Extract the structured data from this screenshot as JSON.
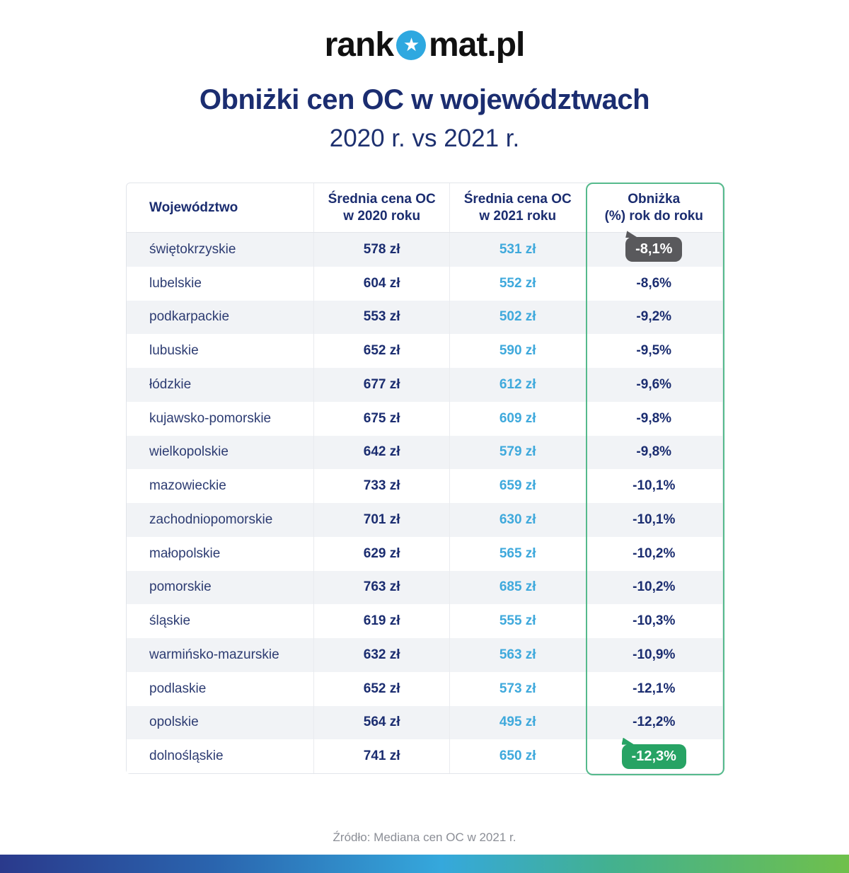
{
  "logo": {
    "text_before": "rank",
    "text_after": "mat.pl",
    "star_glyph": "★",
    "circle_color": "#2ea8e0"
  },
  "header": {
    "title": "Obniżki cen OC w województwach",
    "subtitle": "2020 r. vs 2021 r."
  },
  "table": {
    "columns": [
      "Województwo",
      "Średnia cena OC\nw 2020 roku",
      "Średnia cena OC\nw 2021 roku",
      "Obniżka\n(%) rok do roku"
    ],
    "rows": [
      {
        "region": "świętokrzyskie",
        "price_2020": "578 zł",
        "price_2021": "531 zł",
        "change": "-8,1%",
        "badge": "gray"
      },
      {
        "region": "lubelskie",
        "price_2020": "604 zł",
        "price_2021": "552 zł",
        "change": "-8,6%",
        "badge": null
      },
      {
        "region": "podkarpackie",
        "price_2020": "553 zł",
        "price_2021": "502 zł",
        "change": "-9,2%",
        "badge": null
      },
      {
        "region": "lubuskie",
        "price_2020": "652 zł",
        "price_2021": "590 zł",
        "change": "-9,5%",
        "badge": null
      },
      {
        "region": "łódzkie",
        "price_2020": "677 zł",
        "price_2021": "612 zł",
        "change": "-9,6%",
        "badge": null
      },
      {
        "region": "kujawsko-pomorskie",
        "price_2020": "675 zł",
        "price_2021": "609 zł",
        "change": "-9,8%",
        "badge": null
      },
      {
        "region": "wielkopolskie",
        "price_2020": "642 zł",
        "price_2021": "579 zł",
        "change": "-9,8%",
        "badge": null
      },
      {
        "region": "mazowieckie",
        "price_2020": "733 zł",
        "price_2021": "659 zł",
        "change": "-10,1%",
        "badge": null
      },
      {
        "region": "zachodniopomorskie",
        "price_2020": "701 zł",
        "price_2021": "630 zł",
        "change": "-10,1%",
        "badge": null
      },
      {
        "region": "małopolskie",
        "price_2020": "629 zł",
        "price_2021": "565 zł",
        "change": "-10,2%",
        "badge": null
      },
      {
        "region": "pomorskie",
        "price_2020": "763 zł",
        "price_2021": "685 zł",
        "change": "-10,2%",
        "badge": null
      },
      {
        "region": "śląskie",
        "price_2020": "619 zł",
        "price_2021": "555 zł",
        "change": "-10,3%",
        "badge": null
      },
      {
        "region": "warmińsko-mazurskie",
        "price_2020": "632 zł",
        "price_2021": "563 zł",
        "change": "-10,9%",
        "badge": null
      },
      {
        "region": "podlaskie",
        "price_2020": "652 zł",
        "price_2021": "573 zł",
        "change": "-12,1%",
        "badge": null
      },
      {
        "region": "opolskie",
        "price_2020": "564 zł",
        "price_2021": "495 zł",
        "change": "-12,2%",
        "badge": null
      },
      {
        "region": "dolnośląskie",
        "price_2020": "741 zł",
        "price_2021": "650 zł",
        "change": "-12,3%",
        "badge": "green"
      }
    ]
  },
  "footer": {
    "source": "Źródło: Mediana cen OC w 2021 r."
  },
  "colors": {
    "navy_text": "#1b2d70",
    "light_blue_text": "#3fa9dc",
    "row_stripe": "#f1f3f6",
    "table_border": "#e2e5ea",
    "highlight_column_border": "#55ba8c",
    "badge_gray": "#59595c",
    "badge_green": "#27a364",
    "gradient_left": "#2a3a8c",
    "gradient_right": "#6fc04b"
  },
  "chart_data": {
    "type": "table",
    "title": "Obniżki cen OC w województwach 2020 r. vs 2021 r.",
    "columns": [
      "Województwo",
      "Średnia cena OC w 2020 roku (zł)",
      "Średnia cena OC w 2021 roku (zł)",
      "Obniżka (%) rok do roku"
    ],
    "rows": [
      [
        "świętokrzyskie",
        578,
        531,
        -8.1
      ],
      [
        "lubelskie",
        604,
        552,
        -8.6
      ],
      [
        "podkarpackie",
        553,
        502,
        -9.2
      ],
      [
        "lubuskie",
        652,
        590,
        -9.5
      ],
      [
        "łódzkie",
        677,
        612,
        -9.6
      ],
      [
        "kujawsko-pomorskie",
        675,
        609,
        -9.8
      ],
      [
        "wielkopolskie",
        642,
        579,
        -9.8
      ],
      [
        "mazowieckie",
        733,
        659,
        -10.1
      ],
      [
        "zachodniopomorskie",
        701,
        630,
        -10.1
      ],
      [
        "małopolskie",
        629,
        565,
        -10.2
      ],
      [
        "pomorskie",
        763,
        685,
        -10.2
      ],
      [
        "śląskie",
        619,
        555,
        -10.3
      ],
      [
        "warmińsko-mazurskie",
        632,
        563,
        -10.9
      ],
      [
        "podlaskie",
        652,
        573,
        -12.1
      ],
      [
        "opolskie",
        564,
        495,
        -12.2
      ],
      [
        "dolnośląskie",
        741,
        650,
        -12.3
      ]
    ],
    "units": {
      "price": "zł",
      "change": "%"
    },
    "source": "Źródło: Mediana cen OC w 2021 r."
  }
}
